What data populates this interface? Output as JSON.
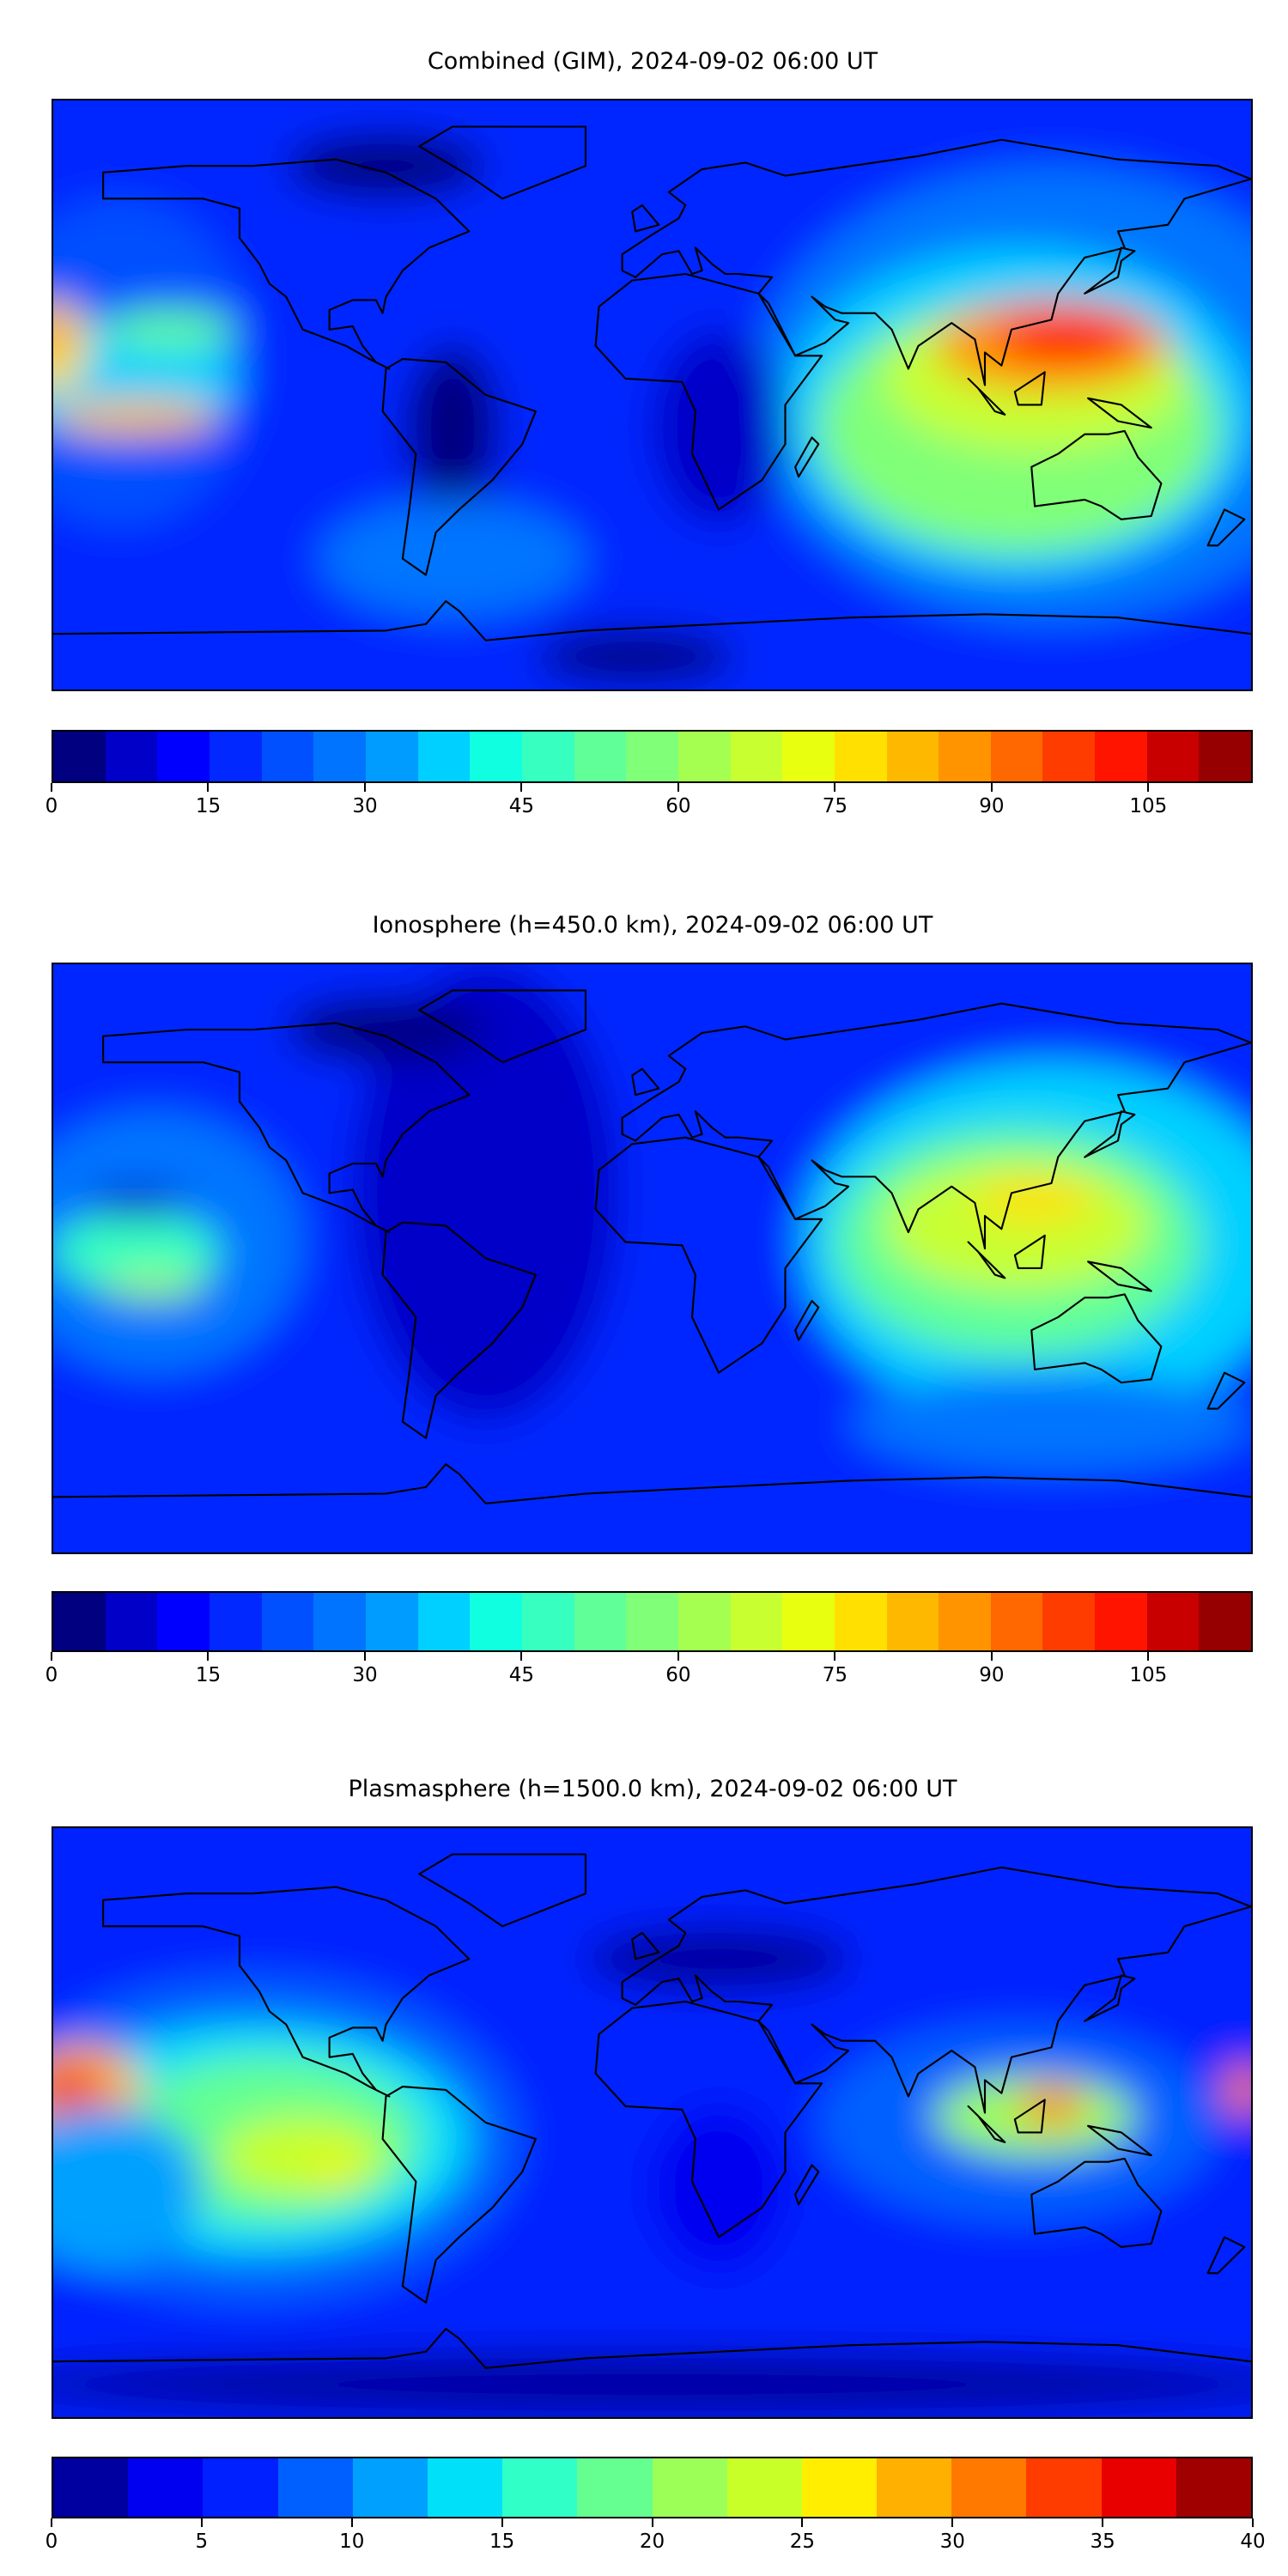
{
  "chart_data": [
    {
      "type": "heatmap",
      "title": "Combined (GIM), 2024-09-02 06:00 UT",
      "projection": "plate-carree",
      "lon_range": [
        -180,
        180
      ],
      "lat_range": [
        -90,
        90
      ],
      "colorbar": {
        "levels": [
          0,
          5,
          10,
          15,
          20,
          25,
          30,
          35,
          40,
          45,
          50,
          55,
          60,
          65,
          70,
          75,
          80,
          85,
          90,
          95,
          100,
          105,
          110,
          115
        ],
        "ticks": [
          "0",
          "15",
          "30",
          "45",
          "60",
          "75",
          "90",
          "105"
        ],
        "tick_values": [
          0,
          15,
          30,
          45,
          60,
          75,
          90,
          105
        ],
        "colors": [
          "#000080",
          "#0000c8",
          "#0000ff",
          "#0028ff",
          "#0050ff",
          "#0074ff",
          "#009cff",
          "#00d0ff",
          "#10ffe0",
          "#36ffc0",
          "#60ff98",
          "#80ff78",
          "#a4ff50",
          "#c8ff30",
          "#e8ff10",
          "#ffe000",
          "#ffb800",
          "#ff9400",
          "#ff6800",
          "#ff3c00",
          "#ff1400",
          "#c80000",
          "#960000"
        ]
      },
      "features": [
        {
          "region": "Southeast Asia / Indonesia",
          "value_approx": 100
        },
        {
          "region": "Central Pacific near 10°S",
          "value_approx": 85
        },
        {
          "region": "Western Pacific edge near equator",
          "value_approx": 80
        },
        {
          "region": "Atlantic / Americas",
          "value_approx": 15
        }
      ]
    },
    {
      "type": "heatmap",
      "title": "Ionosphere  (h=450.0 km), 2024-09-02 06:00 UT",
      "projection": "plate-carree",
      "lon_range": [
        -180,
        180
      ],
      "lat_range": [
        -90,
        90
      ],
      "colorbar": {
        "levels": [
          0,
          5,
          10,
          15,
          20,
          25,
          30,
          35,
          40,
          45,
          50,
          55,
          60,
          65,
          70,
          75,
          80,
          85,
          90,
          95,
          100,
          105,
          110,
          115
        ],
        "ticks": [
          "0",
          "15",
          "30",
          "45",
          "60",
          "75",
          "90",
          "105"
        ],
        "tick_values": [
          0,
          15,
          30,
          45,
          60,
          75,
          90,
          105
        ],
        "colors": [
          "#000080",
          "#0000c8",
          "#0000ff",
          "#0028ff",
          "#0050ff",
          "#0074ff",
          "#009cff",
          "#00d0ff",
          "#10ffe0",
          "#36ffc0",
          "#60ff98",
          "#80ff78",
          "#a4ff50",
          "#c8ff30",
          "#e8ff10",
          "#ffe000",
          "#ffb800",
          "#ff9400",
          "#ff6800",
          "#ff3c00",
          "#ff1400",
          "#c80000",
          "#960000"
        ]
      },
      "features": [
        {
          "region": "South / Southeast Asia",
          "value_approx": 75
        },
        {
          "region": "Central Pacific near 15°N",
          "value_approx": 10
        },
        {
          "region": "Central Pacific near 5°S",
          "value_approx": 55
        }
      ]
    },
    {
      "type": "heatmap",
      "title": "Plasmasphere (h=1500.0 km), 2024-09-02 06:00 UT",
      "projection": "plate-carree",
      "lon_range": [
        -180,
        180
      ],
      "lat_range": [
        -90,
        90
      ],
      "colorbar": {
        "levels": [
          0,
          2.5,
          5,
          7.5,
          10,
          12.5,
          15,
          17.5,
          20,
          22.5,
          25,
          27.5,
          30,
          32.5,
          35,
          37.5,
          40
        ],
        "ticks": [
          "0",
          "5",
          "10",
          "15",
          "20",
          "25",
          "30",
          "35",
          "40"
        ],
        "tick_values": [
          0,
          5,
          10,
          15,
          20,
          25,
          30,
          35,
          40
        ],
        "colors": [
          "#0000a0",
          "#0000f0",
          "#0020ff",
          "#0060ff",
          "#00a0ff",
          "#00e0f8",
          "#30ffc8",
          "#64ff90",
          "#9cff58",
          "#c8ff28",
          "#ffee00",
          "#ffb000",
          "#ff7800",
          "#ff3c00",
          "#e80000",
          "#a00000"
        ]
      },
      "features": [
        {
          "region": "Central Pacific near 5°N",
          "value_approx": 37
        },
        {
          "region": "South America / E Pacific",
          "value_approx": 26
        },
        {
          "region": "Indonesia",
          "value_approx": 32
        }
      ]
    }
  ]
}
